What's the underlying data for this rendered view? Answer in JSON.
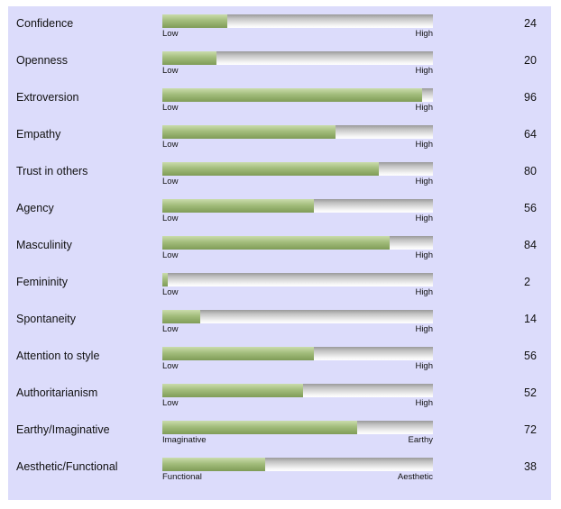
{
  "traits": [
    {
      "label": "Confidence",
      "low": "Low",
      "high": "High",
      "value": 24
    },
    {
      "label": "Openness",
      "low": "Low",
      "high": "High",
      "value": 20
    },
    {
      "label": "Extroversion",
      "low": "Low",
      "high": "High",
      "value": 96
    },
    {
      "label": "Empathy",
      "low": "Low",
      "high": "High",
      "value": 64
    },
    {
      "label": "Trust in others",
      "low": "Low",
      "high": "High",
      "value": 80
    },
    {
      "label": "Agency",
      "low": "Low",
      "high": "High",
      "value": 56
    },
    {
      "label": "Masculinity",
      "low": "Low",
      "high": "High",
      "value": 84
    },
    {
      "label": "Femininity",
      "low": "Low",
      "high": "High",
      "value": 2
    },
    {
      "label": "Spontaneity",
      "low": "Low",
      "high": "High",
      "value": 14
    },
    {
      "label": "Attention to style",
      "low": "Low",
      "high": "High",
      "value": 56
    },
    {
      "label": "Authoritarianism",
      "low": "Low",
      "high": "High",
      "value": 52
    },
    {
      "label": "Earthy/Imaginative",
      "low": "Imaginative",
      "high": "Earthy",
      "value": 72
    },
    {
      "label": "Aesthetic/Functional",
      "low": "Functional",
      "high": "Aesthetic",
      "value": 38
    }
  ],
  "colors": {
    "panel_background": "#dcdcfb",
    "bar_fill": "#94b06b",
    "bar_track": "#c4c4c4"
  }
}
